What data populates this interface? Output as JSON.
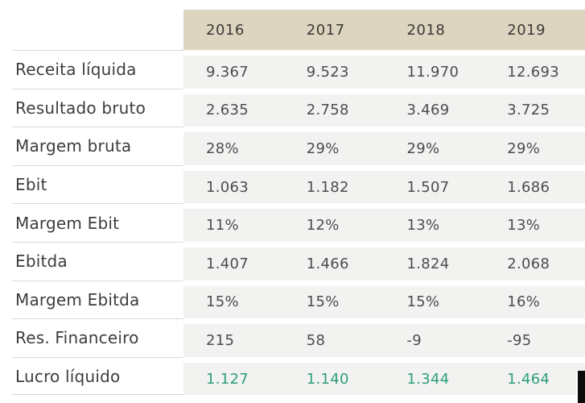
{
  "chart_data": {
    "type": "table",
    "title": "",
    "columns": [
      "2016",
      "2017",
      "2018",
      "2019"
    ],
    "rows": [
      {
        "label": "Receita líquida",
        "values": [
          "9.367",
          "9.523",
          "11.970",
          "12.693"
        ]
      },
      {
        "label": "Resultado bruto",
        "values": [
          "2.635",
          "2.758",
          "3.469",
          "3.725"
        ]
      },
      {
        "label": "Margem bruta",
        "values": [
          "28%",
          "29%",
          "29%",
          "29%"
        ]
      },
      {
        "label": "Ebit",
        "values": [
          "1.063",
          "1.182",
          "1.507",
          "1.686"
        ]
      },
      {
        "label": "Margem Ebit",
        "values": [
          "11%",
          "12%",
          "13%",
          "13%"
        ]
      },
      {
        "label": "Ebitda",
        "values": [
          "1.407",
          "1.466",
          "1.824",
          "2.068"
        ]
      },
      {
        "label": "Margem Ebitda",
        "values": [
          "15%",
          "15%",
          "15%",
          "16%"
        ]
      },
      {
        "label": "Res. Financeiro",
        "values": [
          "215",
          "58",
          "-9",
          "-95"
        ]
      },
      {
        "label": "Lucro líquido",
        "values": [
          "1.127",
          "1.140",
          "1.344",
          "1.464"
        ],
        "highlight": true
      }
    ],
    "layout_hints": {
      "header_position": "top",
      "label_column_position": "left",
      "grid": "horizontal-separators-only"
    },
    "colors": {
      "header_background": "#ddd5c0",
      "row_band_background": "#f2f2f1",
      "separator": "#d9d9d9",
      "label_text": "#3d3d3d",
      "value_text": "#4c4c4c",
      "highlight_text": "#2f9e7a"
    }
  }
}
